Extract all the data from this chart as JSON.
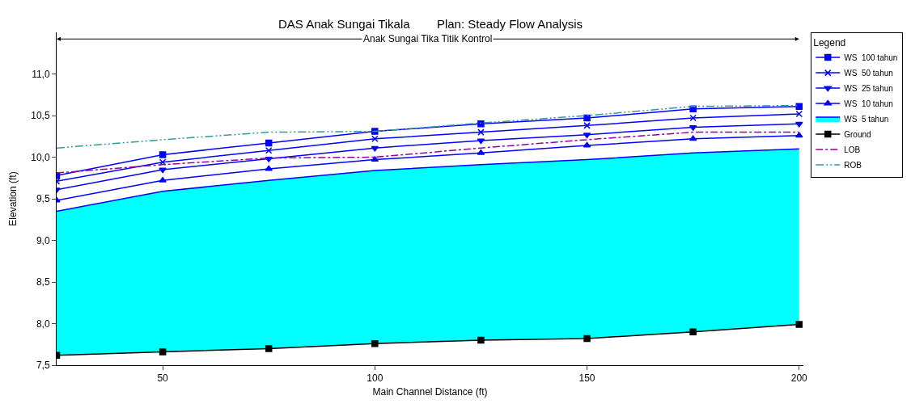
{
  "chart_data": {
    "type": "line",
    "title": "DAS Anak Sungai Tikala",
    "subtitle": "Plan: Steady Flow Analysis",
    "xlabel": "Main Channel Distance (ft)",
    "ylabel": "Elevation (ft)",
    "legend_title": "Legend",
    "annotations": [
      "Anak Sungai Tika Titik Kontrol"
    ],
    "x": [
      25,
      50,
      75,
      100,
      125,
      150,
      175,
      200
    ],
    "series": [
      {
        "name": "WS  100 tahun",
        "color": "#0000ff",
        "marker": "square",
        "values": [
          9.78,
          10.03,
          10.17,
          10.31,
          10.4,
          10.47,
          10.58,
          10.61
        ]
      },
      {
        "name": "WS  50 tahun",
        "color": "#0000ff",
        "marker": "cross",
        "values": [
          9.71,
          9.94,
          10.08,
          10.22,
          10.3,
          10.38,
          10.47,
          10.52
        ]
      },
      {
        "name": "WS  25 tahun",
        "color": "#0000ff",
        "marker": "triangle-down",
        "values": [
          9.61,
          9.85,
          9.98,
          10.11,
          10.2,
          10.27,
          10.36,
          10.4
        ]
      },
      {
        "name": "WS  10 tahun",
        "color": "#0000ff",
        "marker": "triangle",
        "values": [
          9.48,
          9.72,
          9.86,
          9.97,
          10.05,
          10.14,
          10.22,
          10.26
        ]
      },
      {
        "name": "WS  5 tahun",
        "type": "area",
        "color": "#0000ff",
        "marker": "none",
        "values": [
          9.35,
          9.59,
          9.72,
          9.84,
          9.91,
          9.97,
          10.05,
          10.1
        ]
      },
      {
        "name": "Ground",
        "color": "#000000",
        "marker": "square",
        "values": [
          7.62,
          7.66,
          7.7,
          7.76,
          7.8,
          7.82,
          7.9,
          7.99
        ]
      },
      {
        "name": "LOB",
        "color": "#990099",
        "marker": "none",
        "line_style": "dashed",
        "values": [
          9.81,
          9.91,
          9.99,
          10.0,
          10.11,
          10.21,
          10.3,
          10.3
        ]
      },
      {
        "name": "ROB",
        "color": "#339999",
        "marker": "none",
        "line_style": "dotted",
        "values": [
          10.11,
          10.21,
          10.3,
          10.31,
          10.41,
          10.5,
          10.61,
          10.62
        ]
      }
    ],
    "xlim": [
      25,
      201
    ],
    "ylim": [
      7.5,
      11.5
    ],
    "xticks": [
      50,
      100,
      150,
      200
    ],
    "yticks": [
      {
        "value": 7.5,
        "label": "7,5"
      },
      {
        "value": 8.0,
        "label": "8,0"
      },
      {
        "value": 8.5,
        "label": "8,5"
      },
      {
        "value": 9.0,
        "label": "9,0"
      },
      {
        "value": 9.5,
        "label": "9,5"
      },
      {
        "value": 10.0,
        "label": "10,0"
      },
      {
        "value": 10.5,
        "label": "10,5"
      },
      {
        "value": 11.0,
        "label": "11,0"
      }
    ],
    "legend": "top right",
    "line_style": "solid"
  }
}
